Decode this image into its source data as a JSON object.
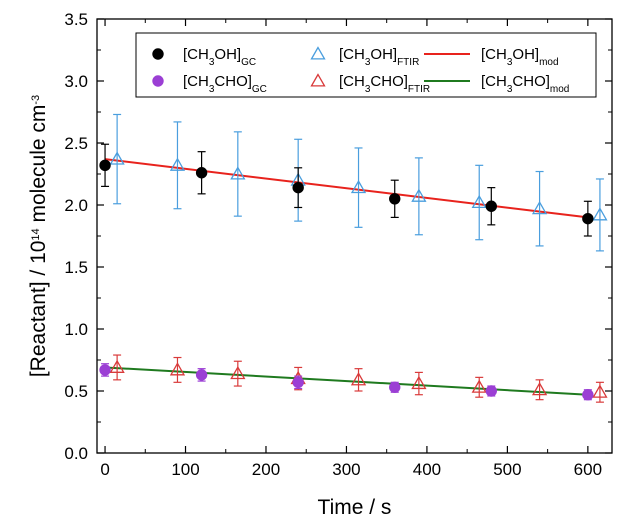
{
  "chart_data": {
    "type": "scatter",
    "xlabel": "Time / s",
    "ylabel": {
      "main": "[Reactant] / 10",
      "exponent": "14",
      "unit": " molecule cm",
      "unit_exponent": "-3"
    },
    "xlim": [
      -10,
      630
    ],
    "ylim": [
      0,
      3.5
    ],
    "xticks": [
      0,
      100,
      200,
      300,
      400,
      500,
      600
    ],
    "yticks": [
      0.0,
      0.5,
      1.0,
      1.5,
      2.0,
      2.5,
      3.0,
      3.5
    ],
    "ytick_labels": [
      "0.0",
      "0.5",
      "1.0",
      "1.5",
      "2.0",
      "2.5",
      "3.0",
      "3.5"
    ],
    "legend_position": "top",
    "series": [
      {
        "name": "[CH3OH]GC",
        "label": {
          "base": "[CH",
          "sub1": "3",
          "mid": "OH]",
          "sub2": "GC"
        },
        "marker": "filled-circle",
        "color": "#000000",
        "points": [
          {
            "x": 0,
            "y": 2.32,
            "err": 0.17
          },
          {
            "x": 120,
            "y": 2.26,
            "err": 0.17
          },
          {
            "x": 240,
            "y": 2.14,
            "err": 0.16
          },
          {
            "x": 360,
            "y": 2.05,
            "err": 0.15
          },
          {
            "x": 480,
            "y": 1.99,
            "err": 0.15
          },
          {
            "x": 600,
            "y": 1.89,
            "err": 0.14
          }
        ]
      },
      {
        "name": "[CH3OH]FTIR",
        "label": {
          "base": "[CH",
          "sub1": "3",
          "mid": "OH]",
          "sub2": "FTIR"
        },
        "marker": "open-triangle",
        "color": "#4a9ede",
        "points": [
          {
            "x": 15,
            "y": 2.37,
            "err": 0.36
          },
          {
            "x": 90,
            "y": 2.32,
            "err": 0.35
          },
          {
            "x": 165,
            "y": 2.25,
            "err": 0.34
          },
          {
            "x": 240,
            "y": 2.2,
            "err": 0.33
          },
          {
            "x": 315,
            "y": 2.14,
            "err": 0.32
          },
          {
            "x": 390,
            "y": 2.07,
            "err": 0.31
          },
          {
            "x": 465,
            "y": 2.02,
            "err": 0.3
          },
          {
            "x": 540,
            "y": 1.97,
            "err": 0.3
          },
          {
            "x": 615,
            "y": 1.92,
            "err": 0.29
          }
        ]
      },
      {
        "name": "[CH3OH]mod",
        "label": {
          "base": "[CH",
          "sub1": "3",
          "mid": "OH]",
          "sub2": "mod"
        },
        "marker": "line",
        "color": "#e8231d",
        "points": [
          {
            "x": 0,
            "y": 2.37
          },
          {
            "x": 600,
            "y": 1.9
          }
        ]
      },
      {
        "name": "[CH3CHO]GC",
        "label": {
          "base": "[CH",
          "sub1": "3",
          "mid": "CHO]",
          "sub2": "GC"
        },
        "marker": "filled-circle",
        "color": "#9b3fd4",
        "points": [
          {
            "x": 0,
            "y": 0.67,
            "err": 0.05
          },
          {
            "x": 120,
            "y": 0.63,
            "err": 0.05
          },
          {
            "x": 240,
            "y": 0.57,
            "err": 0.05
          },
          {
            "x": 360,
            "y": 0.53,
            "err": 0.04
          },
          {
            "x": 480,
            "y": 0.5,
            "err": 0.04
          },
          {
            "x": 600,
            "y": 0.47,
            "err": 0.04
          }
        ]
      },
      {
        "name": "[CH3CHO]FTIR",
        "label": {
          "base": "[CH",
          "sub1": "3",
          "mid": "CHO]",
          "sub2": "FTIR"
        },
        "marker": "open-triangle",
        "color": "#d93a3a",
        "points": [
          {
            "x": 15,
            "y": 0.69,
            "err": 0.1
          },
          {
            "x": 90,
            "y": 0.67,
            "err": 0.1
          },
          {
            "x": 165,
            "y": 0.64,
            "err": 0.1
          },
          {
            "x": 240,
            "y": 0.6,
            "err": 0.09
          },
          {
            "x": 315,
            "y": 0.59,
            "err": 0.09
          },
          {
            "x": 390,
            "y": 0.56,
            "err": 0.09
          },
          {
            "x": 465,
            "y": 0.53,
            "err": 0.08
          },
          {
            "x": 540,
            "y": 0.51,
            "err": 0.08
          },
          {
            "x": 615,
            "y": 0.49,
            "err": 0.08
          }
        ]
      },
      {
        "name": "[CH3CHO]mod",
        "label": {
          "base": "[CH",
          "sub1": "3",
          "mid": "CHO]",
          "sub2": "mod"
        },
        "marker": "line",
        "color": "#1f7a1f",
        "points": [
          {
            "x": 0,
            "y": 0.69
          },
          {
            "x": 600,
            "y": 0.47
          }
        ]
      }
    ]
  }
}
